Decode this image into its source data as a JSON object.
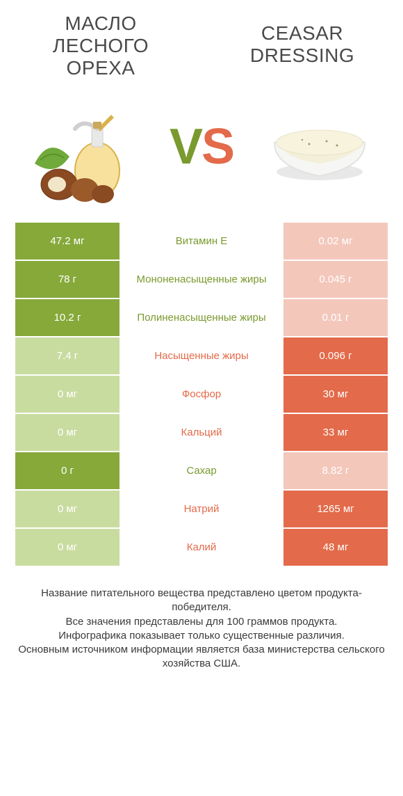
{
  "colors": {
    "left_win": "#86a93a",
    "left_lose": "#c9dca0",
    "right_win": "#e36a4a",
    "right_lose": "#f4c7bb",
    "label_left": "#7a9a2e",
    "label_right": "#e36a4a",
    "title_text": "#4a4a4a"
  },
  "titles": {
    "left": "МАСЛО ЛЕСНОГО ОРЕХА",
    "right": "CEASAR DRESSING"
  },
  "vs": {
    "v": "V",
    "s": "S"
  },
  "rows": [
    {
      "label": "Витамин E",
      "winner": "left",
      "left": "47.2 мг",
      "right": "0.02 мг"
    },
    {
      "label": "Мононенасыщенные жиры",
      "winner": "left",
      "left": "78 г",
      "right": "0.045 г"
    },
    {
      "label": "Полиненасыщенные жиры",
      "winner": "left",
      "left": "10.2 г",
      "right": "0.01 г"
    },
    {
      "label": "Насыщенные жиры",
      "winner": "right",
      "left": "7.4 г",
      "right": "0.096 г"
    },
    {
      "label": "Фосфор",
      "winner": "right",
      "left": "0 мг",
      "right": "30 мг"
    },
    {
      "label": "Кальций",
      "winner": "right",
      "left": "0 мг",
      "right": "33 мг"
    },
    {
      "label": "Сахар",
      "winner": "left",
      "left": "0 г",
      "right": "8.82 г"
    },
    {
      "label": "Натрий",
      "winner": "right",
      "left": "0 мг",
      "right": "1265 мг"
    },
    {
      "label": "Калий",
      "winner": "right",
      "left": "0 мг",
      "right": "48 мг"
    }
  ],
  "footer": "Название питательного вещества представлено цветом продукта-победителя.\nВсе значения представлены для 100 граммов продукта.\nИнфографика показывает только существенные различия.\nОсновным источником информации является база министерства сельского хозяйства США."
}
